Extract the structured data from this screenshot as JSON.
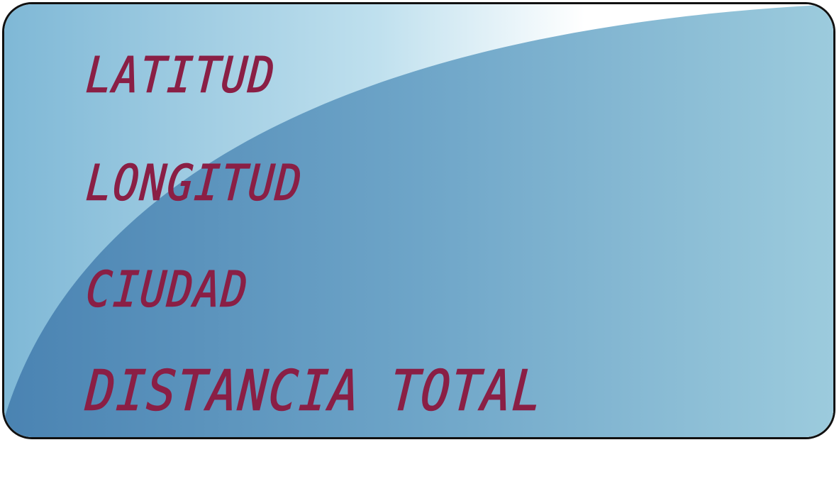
{
  "labels": {
    "latitude": "LATITUD",
    "longitude": "LONGITUD",
    "city": "CIUDAD",
    "total_distance": "DISTANCIA TOTAL"
  },
  "colors": {
    "text": "#8a1f45",
    "background_light": "#8fc3da",
    "background_dark": "#4f88b5",
    "border": "#111111"
  }
}
